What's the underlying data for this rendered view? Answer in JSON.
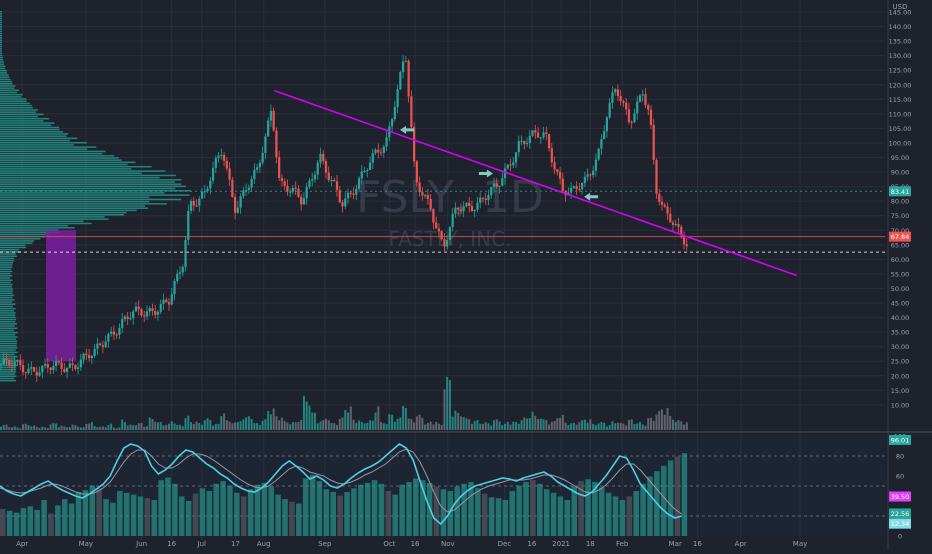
{
  "chart_data": [
    {
      "type": "candlestick",
      "title": "",
      "watermark": {
        "symbol": "FSLY, 1D",
        "name": "FASTLY, INC."
      },
      "currency_label": "USD",
      "colors": {
        "up": "#26a69a",
        "down": "#ef5350",
        "trendline": "#d500f9",
        "volume_profile": "#26a69a",
        "profile_box": "#7b1fa2",
        "h_line_1": "#26a69a",
        "h_line_2": "#ffffff",
        "h_line_3": "#ef5350"
      },
      "y_axis": {
        "range": [
          0,
          145
        ],
        "ticks": [
          "145.00",
          "140.00",
          "135.00",
          "130.00",
          "125.00",
          "120.00",
          "115.00",
          "110.00",
          "105.00",
          "100.00",
          "95.00",
          "90.00",
          "85.00",
          "80.00",
          "75.00",
          "70.00",
          "65.00",
          "60.00",
          "55.00",
          "50.00",
          "45.00",
          "40.00",
          "35.00",
          "30.00",
          "25.00",
          "20.00",
          "15.00",
          "10.00"
        ],
        "badges": [
          {
            "label": "83.41",
            "value": 83.4,
            "color": "#26a69a"
          },
          {
            "label": "67.84",
            "value": 67.8,
            "color": "#ef5350"
          }
        ]
      },
      "x_axis": {
        "ticks": [
          {
            "label": "Apr",
            "pos": 0.025
          },
          {
            "label": "May",
            "pos": 0.097
          },
          {
            "label": "Jun",
            "pos": 0.16
          },
          {
            "label": "16",
            "pos": 0.194
          },
          {
            "label": "Jul",
            "pos": 0.228
          },
          {
            "label": "17",
            "pos": 0.266
          },
          {
            "label": "Aug",
            "pos": 0.298
          },
          {
            "label": "Sep",
            "pos": 0.367
          },
          {
            "label": "Oct",
            "pos": 0.44
          },
          {
            "label": "16",
            "pos": 0.469
          },
          {
            "label": "Nov",
            "pos": 0.506
          },
          {
            "label": "Dec",
            "pos": 0.57
          },
          {
            "label": "16",
            "pos": 0.601
          },
          {
            "label": "2021",
            "pos": 0.634
          },
          {
            "label": "18",
            "pos": 0.667
          },
          {
            "label": "Feb",
            "pos": 0.703
          },
          {
            "label": "Mar",
            "pos": 0.763
          },
          {
            "label": "16",
            "pos": 0.788
          },
          {
            "label": "Apr",
            "pos": 0.837
          },
          {
            "label": "May",
            "pos": 0.904
          }
        ]
      },
      "trendline": {
        "start": {
          "pos": 0.31,
          "value": 118
        },
        "end": {
          "pos": 0.9,
          "value": 54.5
        }
      },
      "horizontal_lines": [
        {
          "value": 83.4,
          "style": "dotted",
          "color_key": "h_line_1"
        },
        {
          "value": 62.5,
          "style": "dashed",
          "color_key": "h_line_2"
        },
        {
          "value": 67.8,
          "style": "solid",
          "color_key": "h_line_3"
        }
      ],
      "annotations": [
        {
          "type": "arrow-left",
          "pos": 0.452,
          "value": 104.5
        },
        {
          "type": "arrow-right",
          "pos": 0.557,
          "value": 89.5
        },
        {
          "type": "arrow-left",
          "pos": 0.66,
          "value": 81.5
        }
      ],
      "anchors": [
        [
          0.0,
          24
        ],
        [
          0.05,
          22
        ],
        [
          0.08,
          24
        ],
        [
          0.105,
          27
        ],
        [
          0.12,
          34
        ],
        [
          0.15,
          41
        ],
        [
          0.19,
          45
        ],
        [
          0.205,
          58
        ],
        [
          0.213,
          80
        ],
        [
          0.23,
          82
        ],
        [
          0.25,
          98
        ],
        [
          0.265,
          78
        ],
        [
          0.29,
          90
        ],
        [
          0.306,
          113
        ],
        [
          0.315,
          86
        ],
        [
          0.34,
          80
        ],
        [
          0.36,
          96
        ],
        [
          0.37,
          88
        ],
        [
          0.385,
          79
        ],
        [
          0.41,
          90
        ],
        [
          0.435,
          100
        ],
        [
          0.445,
          115
        ],
        [
          0.457,
          131
        ],
        [
          0.468,
          86
        ],
        [
          0.485,
          79
        ],
        [
          0.5,
          64
        ],
        [
          0.515,
          77
        ],
        [
          0.54,
          80
        ],
        [
          0.56,
          84
        ],
        [
          0.585,
          100
        ],
        [
          0.615,
          103
        ],
        [
          0.635,
          84
        ],
        [
          0.645,
          82
        ],
        [
          0.66,
          87
        ],
        [
          0.675,
          97
        ],
        [
          0.685,
          110
        ],
        [
          0.695,
          118
        ],
        [
          0.71,
          108
        ],
        [
          0.725,
          118
        ],
        [
          0.733,
          109
        ],
        [
          0.74,
          83
        ],
        [
          0.748,
          77
        ],
        [
          0.76,
          74
        ],
        [
          0.775,
          65
        ]
      ],
      "volume_profile_peak_value": 83,
      "volume_scale_pct": [
        6,
        4,
        3,
        7,
        5,
        4,
        3,
        8,
        5,
        4,
        6,
        3,
        9,
        5,
        4,
        7,
        3,
        12,
        6,
        8,
        5,
        14,
        9,
        7,
        11,
        6,
        16,
        10,
        8,
        13,
        7,
        22,
        11,
        9,
        14,
        18,
        8,
        12,
        25,
        16,
        10,
        9,
        13,
        38,
        20,
        11,
        15,
        8,
        14,
        27,
        12,
        9,
        11,
        30,
        9,
        18,
        14,
        33,
        13,
        17,
        8,
        10,
        7,
        60,
        24,
        19,
        13,
        11,
        9,
        8,
        12,
        7,
        10,
        9,
        14,
        22,
        16,
        12,
        10,
        17,
        9,
        8,
        11,
        13,
        7,
        9,
        6,
        10,
        8,
        12,
        9,
        7,
        14,
        21,
        26,
        16,
        11,
        9
      ]
    },
    {
      "type": "oscillator",
      "y_axis": {
        "range": [
          0,
          100
        ],
        "ticks": [
          "100",
          "80",
          "60",
          "40",
          "20",
          "0"
        ]
      },
      "levels": [
        80,
        50,
        20
      ],
      "badges": [
        {
          "label": "39.50",
          "value": 39.5,
          "color": "#e040fb"
        },
        {
          "label": "22.56",
          "value": 22.56,
          "color": "#26a69a"
        },
        {
          "label": "12.34",
          "value": 12.34,
          "color": "#80deea"
        },
        {
          "label": "96.01",
          "value": 96.01,
          "color": "#26a69a"
        }
      ],
      "oscillator_line": [
        50,
        45,
        42,
        40,
        44,
        48,
        52,
        55,
        50,
        46,
        43,
        40,
        38,
        42,
        47,
        52,
        60,
        75,
        88,
        92,
        90,
        85,
        70,
        62,
        66,
        72,
        80,
        86,
        84,
        78,
        72,
        68,
        62,
        58,
        52,
        48,
        45,
        44,
        48,
        54,
        62,
        70,
        75,
        70,
        64,
        57,
        60,
        56,
        50,
        48,
        52,
        58,
        63,
        67,
        70,
        74,
        80,
        86,
        92,
        88,
        76,
        55,
        35,
        18,
        12,
        20,
        32,
        40,
        46,
        50,
        52,
        54,
        56,
        58,
        57,
        55,
        58,
        60,
        62,
        64,
        60,
        54,
        50,
        46,
        42,
        40,
        44,
        52,
        60,
        70,
        80,
        78,
        66,
        52,
        44,
        36,
        28,
        22,
        18,
        20
      ],
      "signal_line": [
        48,
        46,
        44,
        43,
        44,
        46,
        48,
        51,
        52,
        50,
        47,
        44,
        42,
        42,
        44,
        48,
        54,
        64,
        74,
        82,
        86,
        86,
        80,
        72,
        68,
        68,
        72,
        78,
        82,
        82,
        80,
        76,
        71,
        66,
        61,
        56,
        52,
        49,
        48,
        50,
        55,
        61,
        67,
        70,
        68,
        64,
        62,
        60,
        56,
        53,
        52,
        54,
        57,
        61,
        64,
        68,
        72,
        78,
        84,
        87,
        84,
        74,
        60,
        44,
        30,
        24,
        26,
        32,
        38,
        43,
        47,
        50,
        52,
        54,
        56,
        56,
        56,
        57,
        59,
        61,
        61,
        59,
        56,
        52,
        48,
        44,
        43,
        46,
        51,
        58,
        66,
        72,
        72,
        66,
        58,
        50,
        42,
        34,
        27,
        22
      ],
      "columns": [
        30,
        28,
        26,
        31,
        33,
        29,
        40,
        25,
        34,
        41,
        36,
        49,
        51,
        56,
        53,
        41,
        37,
        50,
        48,
        46,
        44,
        42,
        40,
        62,
        65,
        58,
        44,
        39,
        47,
        53,
        50,
        58,
        61,
        56,
        48,
        44,
        52,
        57,
        59,
        55,
        46,
        41,
        38,
        36,
        64,
        68,
        61,
        52,
        49,
        45,
        49,
        53,
        57,
        59,
        62,
        58,
        50,
        46,
        57,
        60,
        64,
        62,
        59,
        55,
        52,
        50,
        55,
        58,
        60,
        53,
        47,
        43,
        42,
        40,
        50,
        56,
        60,
        62,
        58,
        52,
        48,
        44,
        40,
        55,
        61,
        63,
        60,
        54,
        48,
        44,
        40,
        44,
        50,
        58,
        66,
        72,
        78,
        84,
        88,
        92
      ]
    }
  ]
}
